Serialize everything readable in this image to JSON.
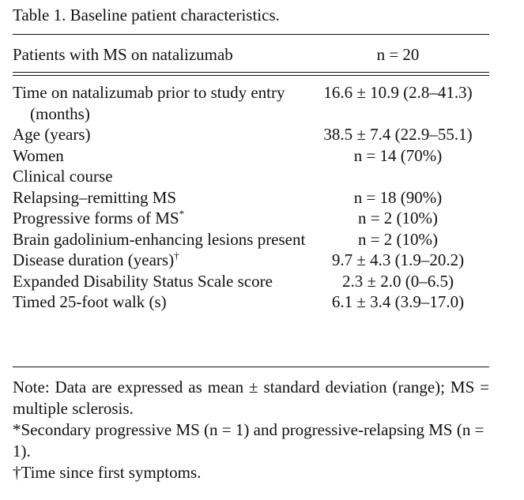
{
  "table": {
    "caption": "Table 1.  Baseline patient characteristics.",
    "header": {
      "label": "Patients with MS on natalizumab",
      "value": "n = 20"
    },
    "rows": [
      {
        "label": "Time on natalizumab prior to study entry (months)",
        "value": "16.6 ± 10.9 (2.8–41.3)"
      },
      {
        "label": "Age (years)",
        "value": "38.5 ± 7.4 (22.9–55.1)"
      },
      {
        "label": "Women",
        "value": "n = 14 (70%)"
      },
      {
        "label": "Clinical course",
        "value": ""
      },
      {
        "label": "Relapsing–remitting MS",
        "value": "n = 18 (90%)"
      },
      {
        "label": "Progressive forms of MS",
        "mark": "*",
        "value": "n = 2 (10%)"
      },
      {
        "label": "Brain gadolinium-enhancing lesions present",
        "value": "n = 2 (10%)"
      },
      {
        "label": "Disease duration (years)",
        "mark": "†",
        "value": "9.7 ± 4.3 (1.9–20.2)"
      },
      {
        "label": "Expanded Disability Status Scale score",
        "value": "2.3 ± 2.0 (0–6.5)"
      },
      {
        "label": "Timed 25-foot walk (s)",
        "value": "6.1 ± 3.4 (3.9–17.0)"
      }
    ],
    "notes": [
      "Note: Data are expressed as mean ± standard deviation (range); MS = multiple sclerosis.",
      "*Secondary progressive MS (n = 1) and progressive-relapsing MS (n = 1).",
      "†Time since first symptoms."
    ]
  }
}
